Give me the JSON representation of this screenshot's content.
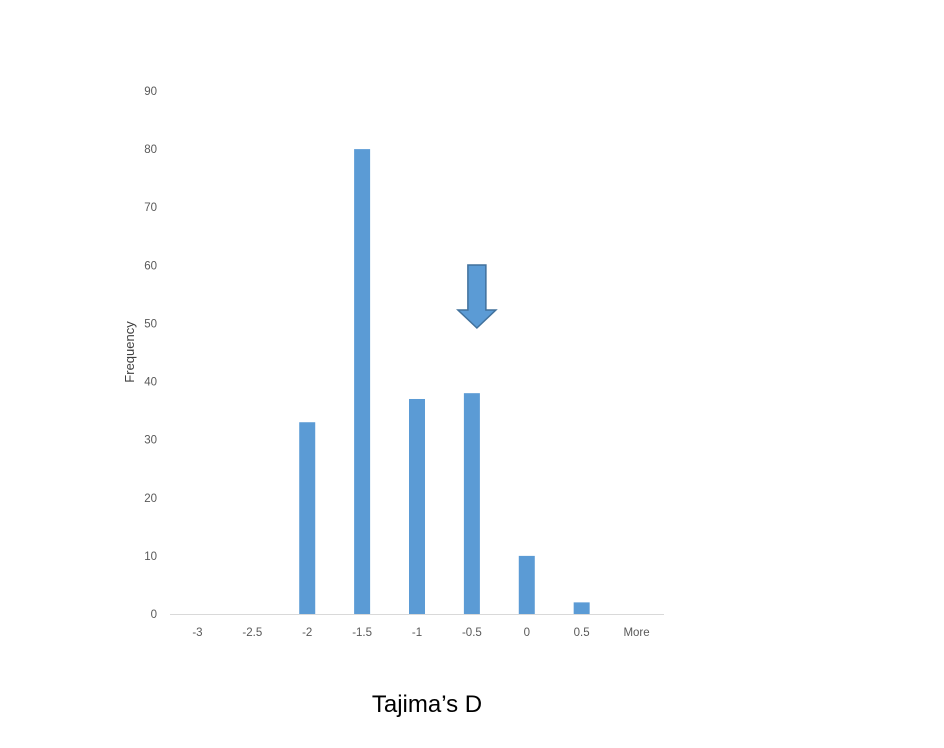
{
  "chart_data": {
    "type": "bar",
    "categories": [
      "-3",
      "-2.5",
      "-2",
      "-1.5",
      "-1",
      "-0.5",
      "0",
      "0.5",
      "More"
    ],
    "series": [
      {
        "values": [
          0,
          0,
          33,
          80,
          37,
          38,
          10,
          2,
          0
        ]
      }
    ],
    "xlabel": "Tajima’s D",
    "ylabel": "Frequency",
    "ylim": [
      0,
      90
    ],
    "yticks": [
      0,
      10,
      20,
      30,
      40,
      50,
      60,
      70,
      80,
      90
    ],
    "grid": false,
    "legend": "none",
    "annotations": [
      {
        "kind": "arrow",
        "direction": "down",
        "points_to_category": "-0.5"
      }
    ]
  },
  "colors": {
    "bar": "#5b9bd5",
    "arrow_fill": "#5b9bd5",
    "arrow_stroke": "#41719c",
    "axis": "#d9d9d9"
  }
}
